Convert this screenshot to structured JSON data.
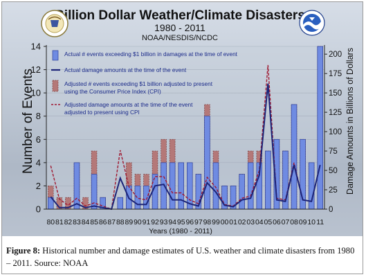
{
  "chart_data": {
    "type": "bar",
    "title": "Billion Dollar Weather/Climate Disasters",
    "subtitle": "1980 - 2011",
    "source_line": "NOAA/NESDIS/NCDC",
    "xlabel": "Years (1980 - 2011)",
    "ylabel": "Number of Events",
    "ylabel_right": "Damage Amounts in Billions of Dollars",
    "ylim": [
      0,
      14
    ],
    "ylim_right": [
      0,
      210
    ],
    "yticks_left": [
      "0",
      "2",
      "4",
      "6",
      "8",
      "10",
      "12",
      "14"
    ],
    "yticks_right": [
      "0",
      "25",
      "50",
      "75",
      "100",
      "125",
      "150",
      "175",
      "200"
    ],
    "categories": [
      "80",
      "81",
      "82",
      "83",
      "84",
      "85",
      "86",
      "87",
      "88",
      "89",
      "90",
      "91",
      "92",
      "93",
      "94",
      "95",
      "96",
      "97",
      "98",
      "99",
      "00",
      "01",
      "02",
      "03",
      "04",
      "05",
      "06",
      "07",
      "08",
      "09",
      "10",
      "11"
    ],
    "series": [
      {
        "name": "Actual # events exceeding $1 billion in damages at the time of event",
        "kind": "bar",
        "axis": "left",
        "color": "#6f8be2",
        "values": [
          1,
          0,
          0,
          4,
          0,
          3,
          1,
          0,
          1,
          2,
          2,
          2,
          3,
          4,
          4,
          4,
          4,
          3,
          8,
          4,
          2,
          2,
          3,
          4,
          4,
          5,
          6,
          5,
          9,
          6,
          4,
          14
        ]
      },
      {
        "name": "Actual damage amounts at the time of the event",
        "kind": "line",
        "axis": "right",
        "color": "#1c2478",
        "values": [
          16,
          2,
          2,
          7,
          2,
          4,
          2,
          0,
          40,
          14,
          6,
          6,
          30,
          32,
          12,
          12,
          7,
          4,
          34,
          22,
          5,
          3,
          12,
          14,
          44,
          162,
          12,
          10,
          57,
          12,
          10,
          57
        ]
      },
      {
        "name": "Adjusted # events exceeding $1 billion adjusted to present using the Consumer Price Index (CPI)",
        "kind": "bar",
        "axis": "left",
        "color": "#b47878",
        "values": [
          2,
          1,
          1,
          4,
          1,
          5,
          1,
          0,
          1,
          4,
          3,
          3,
          5,
          6,
          6,
          4,
          4,
          3,
          9,
          5,
          2,
          2,
          3,
          5,
          5,
          5,
          6,
          5,
          9,
          6,
          4,
          14
        ]
      },
      {
        "name": "Adjusted damage amounts at the time of the event adjusted to present using CPI",
        "kind": "line",
        "axis": "right",
        "color": "#a01830",
        "values": [
          56,
          13,
          5,
          14,
          4,
          8,
          4,
          0,
          76,
          29,
          14,
          12,
          42,
          42,
          21,
          21,
          12,
          7,
          41,
          28,
          6,
          4,
          14,
          17,
          50,
          186,
          14,
          12,
          60,
          12,
          10,
          57
        ]
      }
    ]
  },
  "caption": {
    "label": "Figure 8:",
    "text": "Historical number and damage estimates of U.S. weather and climate disasters from 1980 – 2011. Source: NOAA"
  },
  "logos": {
    "left": "doc-seal-icon",
    "right": "noaa-logo-icon"
  },
  "colors": {
    "panel_top": "#d6dde7",
    "panel_bottom": "#b9c2cf",
    "actual_bar": "#6f8be2",
    "adjusted_bar": "#b47878",
    "actual_line": "#1c2478",
    "adjusted_line": "#a01830"
  }
}
